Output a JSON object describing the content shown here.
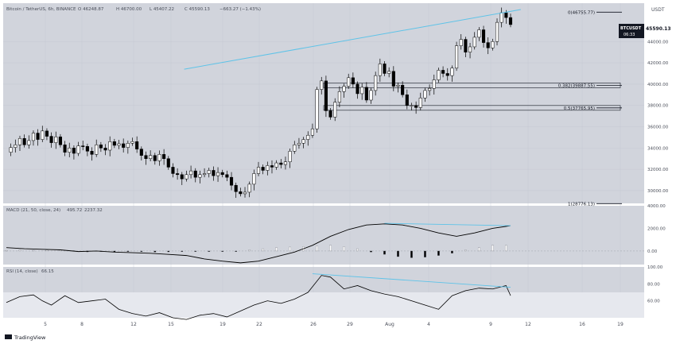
{
  "header": {
    "symbol": "Bitcoin / TetherUS, 6h, BINANCE",
    "ohlc_o": "O 46248.87",
    "ohlc_h": "H 46700.00",
    "ohlc_l": "L 45407.22",
    "ohlc_c": "C 45590.13",
    "change": "−663.27 (−1.43%)"
  },
  "currency": "USDT",
  "price_tag": {
    "symbol": "BTCUSDT",
    "price": "45590.13",
    "countdown": "06:33"
  },
  "macd_label": "MACD (21, 50, close, 24)",
  "macd_values": [
    "495.72",
    "2237.32"
  ],
  "rsi_label": "RSI (14, close)",
  "rsi_value": "66.15",
  "brand": "TradingView",
  "fib_labels": {
    "f0": "0(46755.77)",
    "f382": "0.382(39887.55)",
    "f5": "0.5(37765.95)",
    "f1": "1(28776.13)"
  },
  "colors": {
    "background": "#d1d4dc",
    "pane_bg": "#ffffff",
    "trendline": "#5ec3e8",
    "candle_up": "#ffffff",
    "candle_down": "#000000",
    "rsi_band": "#e6e8ee",
    "text": "#131722"
  },
  "chart_data": [
    {
      "type": "candlestick",
      "title": "Bitcoin / TetherUS, 6h, BINANCE",
      "x_ticks": [
        "5",
        "8",
        "12",
        "15",
        "19",
        "22",
        "26",
        "29",
        "Aug",
        "4",
        "9",
        "12",
        "16",
        "19"
      ],
      "y_ticks": [
        "30000.00",
        "32000.00",
        "34000.00",
        "36000.00",
        "38000.00",
        "40000.00",
        "42000.00",
        "44000.00"
      ],
      "ylim": [
        28800,
        47600
      ],
      "close_series": [
        33600,
        34050,
        34300,
        34900,
        34300,
        34700,
        35400,
        34800,
        35600,
        35100,
        34500,
        35050,
        34300,
        33600,
        34000,
        33500,
        34200,
        34150,
        33700,
        33400,
        34300,
        34000,
        33800,
        34600,
        34250,
        34400,
        34050,
        34450,
        34600,
        33900,
        33300,
        33000,
        33300,
        32800,
        33400,
        33000,
        32200,
        31600,
        31500,
        31100,
        31500,
        31850,
        31250,
        31500,
        31600,
        31900,
        31400,
        31700,
        31500,
        31250,
        30500,
        29900,
        29700,
        29850,
        30600,
        31600,
        32200,
        31900,
        32350,
        32200,
        32600,
        32450,
        32700,
        33700,
        34300,
        34450,
        34800,
        35200,
        35800,
        39500,
        40300,
        37500,
        36900,
        38300,
        39300,
        39800,
        40600,
        40000,
        39100,
        39700,
        38500,
        39400,
        40800,
        41900,
        41000,
        41200,
        39800,
        39900,
        39000,
        38000,
        38000,
        37800,
        38700,
        39400,
        39600,
        40400,
        41300,
        41000,
        40800,
        41500,
        43600,
        44200,
        43000,
        43500,
        44400,
        45100,
        43900,
        43400,
        44000,
        45800,
        46700,
        46248.87,
        45590.13
      ],
      "trendline": {
        "from": [
          39.5,
          41400
        ],
        "to": [
          112.5,
          47000
        ]
      },
      "fib_levels": [
        {
          "ratio": "0",
          "price": 46755.77
        },
        {
          "ratio": "0.382",
          "price": 39887.55
        },
        {
          "ratio": "0.5",
          "price": 37765.95
        },
        {
          "ratio": "1",
          "price": 28776.13
        }
      ],
      "last_price": 45590.13
    },
    {
      "type": "line",
      "title": "MACD (21, 50, close, 24)",
      "y_ticks": [
        "0.00",
        "2000.00",
        "4000.00"
      ],
      "ylim": [
        -1200,
        4000
      ],
      "macd_x": [
        0,
        4,
        8,
        12,
        16,
        20,
        24,
        28,
        32,
        36,
        40,
        44,
        48,
        52,
        56,
        60,
        64,
        68,
        72,
        76,
        80,
        84,
        88,
        92,
        96,
        100,
        104,
        108,
        112
      ],
      "macd_values": [
        300,
        200,
        150,
        100,
        -50,
        0,
        -100,
        -150,
        -200,
        -300,
        -400,
        -700,
        -900,
        -1050,
        -900,
        -500,
        -100,
        500,
        1300,
        1900,
        2300,
        2400,
        2300,
        2000,
        1600,
        1300,
        1600,
        2000,
        2237
      ],
      "histogram_x": [
        0,
        3,
        6,
        9,
        12,
        15,
        18,
        21,
        24,
        27,
        30,
        33,
        36,
        39,
        42,
        45,
        48,
        51,
        54,
        57,
        60,
        63,
        66,
        69,
        72,
        75,
        78,
        81,
        84,
        87,
        90,
        93,
        96,
        99,
        102,
        105,
        108,
        111
      ],
      "histogram_values": [
        50,
        80,
        60,
        90,
        70,
        40,
        -80,
        -60,
        -90,
        -50,
        -70,
        -100,
        -80,
        -60,
        -40,
        -50,
        -60,
        -30,
        100,
        200,
        300,
        350,
        400,
        450,
        500,
        400,
        200,
        -100,
        -300,
        -500,
        -600,
        -550,
        -400,
        -200,
        100,
        300,
        500,
        495
      ]
    },
    {
      "type": "line",
      "title": "RSI (14, close)",
      "y_ticks": [
        "100.00",
        "80.00",
        "60.00"
      ],
      "ylim": [
        40,
        100
      ],
      "band": [
        30,
        70
      ],
      "rsi_x": [
        0,
        3,
        6,
        8,
        10,
        13,
        16,
        19,
        22,
        25,
        28,
        31,
        34,
        37,
        40,
        43,
        46,
        49,
        52,
        55,
        58,
        61,
        64,
        67,
        70,
        72,
        75,
        78,
        81,
        84,
        87,
        90,
        93,
        96,
        99,
        102,
        105,
        108,
        111,
        112
      ],
      "rsi_values": [
        58,
        65,
        67,
        60,
        55,
        66,
        58,
        60,
        62,
        50,
        45,
        42,
        46,
        40,
        38,
        43,
        45,
        41,
        48,
        55,
        60,
        57,
        62,
        70,
        90,
        88,
        74,
        78,
        72,
        68,
        65,
        60,
        55,
        50,
        66,
        72,
        75,
        74,
        78,
        66.15
      ]
    }
  ]
}
